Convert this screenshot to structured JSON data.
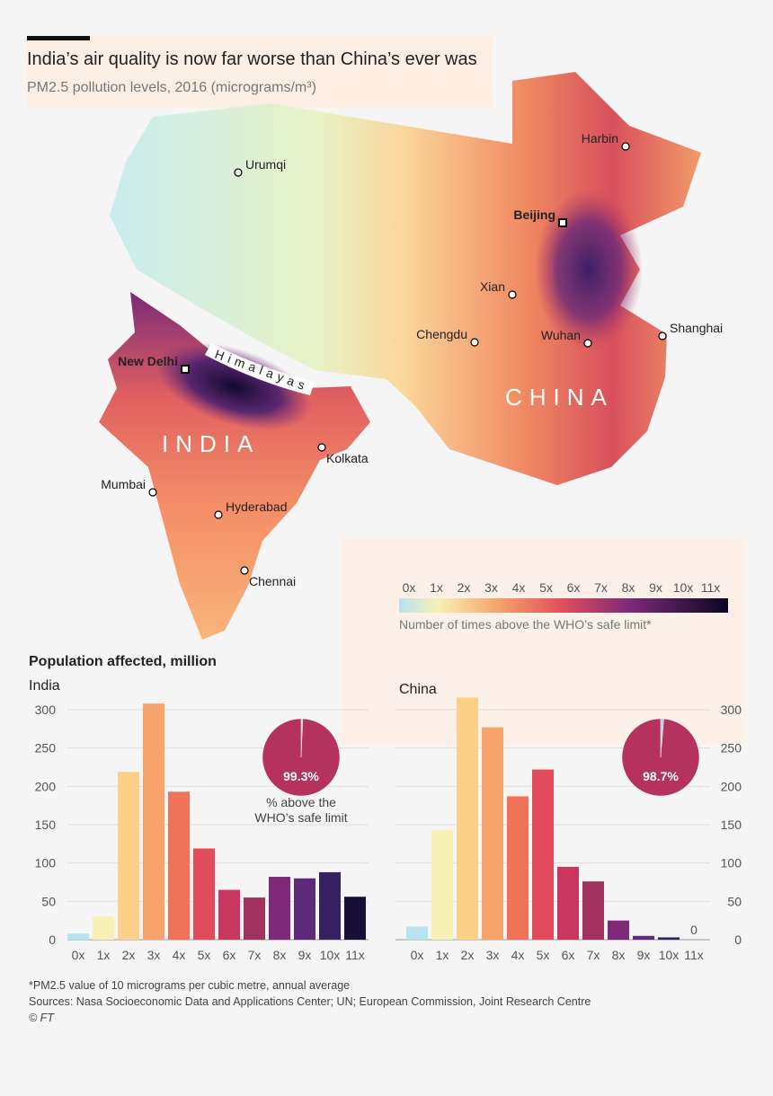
{
  "header": {
    "title": "India’s air quality is now far worse than China’s ever was",
    "subtitle": "PM2.5 pollution levels, 2016 (micrograms/m³)"
  },
  "map": {
    "countries": [
      "INDIA",
      "CHINA"
    ],
    "region_label": "Himalayas",
    "cities": [
      {
        "name": "Urumqi",
        "capital": false
      },
      {
        "name": "Harbin",
        "capital": false
      },
      {
        "name": "Beijing",
        "capital": true
      },
      {
        "name": "Xian",
        "capital": false
      },
      {
        "name": "Chengdu",
        "capital": false
      },
      {
        "name": "Wuhan",
        "capital": false
      },
      {
        "name": "Shanghai",
        "capital": false
      },
      {
        "name": "New Delhi",
        "capital": true
      },
      {
        "name": "Kolkata",
        "capital": false
      },
      {
        "name": "Mumbai",
        "capital": false
      },
      {
        "name": "Hyderabad",
        "capital": false
      },
      {
        "name": "Chennai",
        "capital": false
      }
    ],
    "legend": {
      "labels": [
        "0x",
        "1x",
        "2x",
        "3x",
        "4x",
        "5x",
        "6x",
        "7x",
        "8x",
        "9x",
        "10x",
        "11x"
      ],
      "title": "Number of times above the WHO’s safe limit*"
    }
  },
  "section_title": "Population affected, million",
  "chart_data": [
    {
      "type": "bar",
      "title": "India",
      "yaxis_side": "left",
      "categories": [
        "0x",
        "1x",
        "2x",
        "3x",
        "4x",
        "5x",
        "6x",
        "7x",
        "8x",
        "9x",
        "10x",
        "11x"
      ],
      "values": [
        8,
        30,
        219,
        308,
        193,
        119,
        65,
        55,
        82,
        80,
        88,
        56
      ],
      "colors": [
        "#b8e2ee",
        "#f7f1b5",
        "#fdd08a",
        "#f6a36c",
        "#f07259",
        "#e04c5c",
        "#c9365f",
        "#a2325e",
        "#7e2a78",
        "#5c2a7b",
        "#35215f",
        "#170f36"
      ],
      "ylim": [
        0,
        300
      ],
      "yticks": [
        0,
        50,
        100,
        150,
        200,
        250,
        300
      ],
      "grid": true,
      "share": 99.3,
      "share_label": "99.3%",
      "share_color": "#b5325e",
      "rest_color": "#b7cfe0",
      "share_caption": [
        "% above the",
        "WHO’s safe limit"
      ]
    },
    {
      "type": "bar",
      "title": "China",
      "yaxis_side": "right",
      "categories": [
        "0x",
        "1x",
        "2x",
        "3x",
        "4x",
        "5x",
        "6x",
        "7x",
        "8x",
        "9x",
        "10x",
        "11x"
      ],
      "values": [
        17,
        143,
        316,
        277,
        187,
        222,
        95,
        76,
        25,
        5,
        3,
        0
      ],
      "colors": [
        "#b8e2ee",
        "#f7f1b5",
        "#fdd08a",
        "#f6a36c",
        "#f07259",
        "#e04c5c",
        "#c9365f",
        "#a2325e",
        "#7e2a78",
        "#5c2a7b",
        "#35215f",
        "#170f36"
      ],
      "ylim": [
        0,
        300
      ],
      "yticks": [
        0,
        50,
        100,
        150,
        200,
        250,
        300
      ],
      "grid": true,
      "zero_label_index": 11,
      "share": 98.7,
      "share_label": "98.7%",
      "share_color": "#b5325e",
      "rest_color": "#b7cfe0"
    }
  ],
  "footer": [
    "*PM2.5 value of 10 micrograms per cubic metre, annual average",
    "Sources: Nasa Socioeconomic Data and Applications Center; UN; European Commission, Joint Research Centre",
    "© FT"
  ]
}
